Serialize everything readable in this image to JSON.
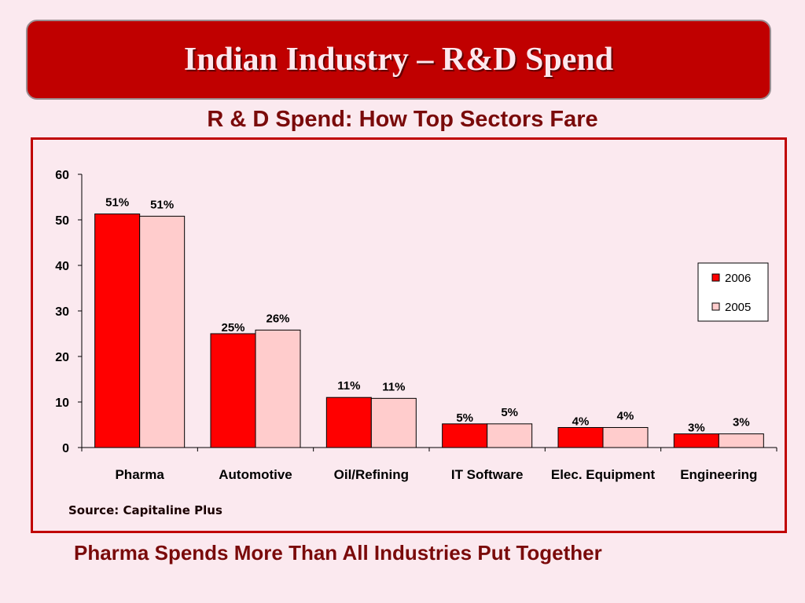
{
  "slide": {
    "title": "Indian Industry – R&D Spend",
    "source": "Source: Capitaline Plus",
    "footer": "Pharma Spends More Than All Industries Put Together"
  },
  "colors": {
    "series_2006": "#ff0000",
    "series_2005": "#ffcccc",
    "banner": "#c00000",
    "text_dark_red": "#7a0a0a"
  },
  "chart_data": {
    "type": "bar",
    "title": "R & D Spend: How Top Sectors Fare",
    "categories": [
      "Pharma",
      "Automotive",
      "Oil/Refining",
      "IT Software",
      "Elec. Equipment",
      "Engineering"
    ],
    "series": [
      {
        "name": "2006",
        "values": [
          51.3,
          25,
          11,
          5.2,
          4.4,
          3
        ],
        "labels": [
          "51%",
          "25%",
          "11%",
          "5%",
          "4%",
          "3%"
        ]
      },
      {
        "name": "2005",
        "values": [
          50.8,
          25.8,
          10.8,
          5.2,
          4.4,
          3
        ],
        "labels": [
          "51%",
          "26%",
          "11%",
          "5%",
          "4%",
          "3%"
        ]
      }
    ],
    "ylim": [
      0,
      60
    ],
    "yticks": [
      0,
      10,
      20,
      30,
      40,
      50,
      60
    ],
    "xlabel": "",
    "ylabel": "",
    "grid": false,
    "legend_position": "right"
  }
}
